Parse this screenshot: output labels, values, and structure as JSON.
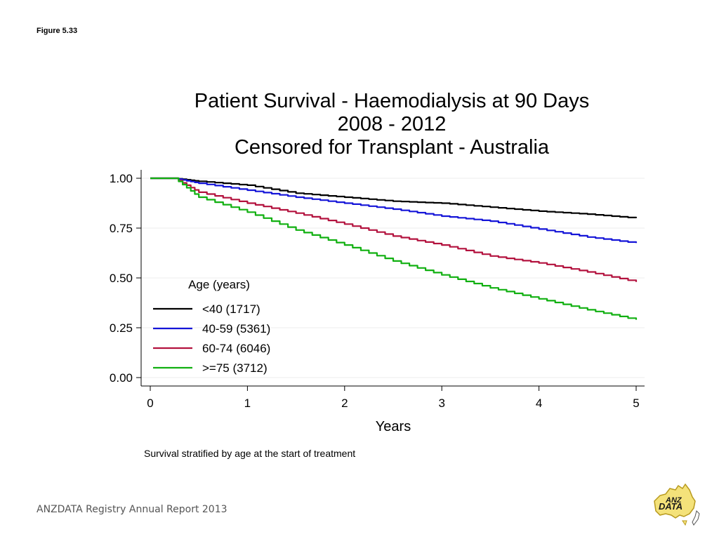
{
  "figure_label": "Figure 5.33",
  "caption": "Survival stratified by age at the start of treatment",
  "footer": "ANZDATA Registry Annual Report 2013",
  "logo": {
    "text_top": "ANZ",
    "text_bottom": "DATA",
    "icon": "australia-map-logo-icon"
  },
  "chart_data": {
    "type": "line",
    "title": [
      "Patient Survival - Haemodialysis at 90 Days",
      "2008 - 2012",
      "Censored for Transplant - Australia"
    ],
    "xlabel": "Years",
    "ylabel": "",
    "xlim": [
      0,
      5
    ],
    "ylim": [
      0,
      1
    ],
    "xticks": [
      "0",
      "1",
      "2",
      "3",
      "4",
      "5"
    ],
    "yticks": [
      "0.00",
      "0.25",
      "0.50",
      "0.75",
      "1.00"
    ],
    "grid": true,
    "legend": {
      "title": "Age (years)",
      "placement": "inside-bottom-left"
    },
    "x": [
      0,
      0.25,
      0.5,
      1,
      1.5,
      2,
      2.5,
      3,
      3.5,
      4,
      4.5,
      5
    ],
    "series": [
      {
        "name": "<40 (1717)",
        "color": "#000000",
        "values": [
          1.0,
          1.0,
          0.985,
          0.965,
          0.925,
          0.905,
          0.885,
          0.875,
          0.855,
          0.835,
          0.82,
          0.8
        ]
      },
      {
        "name": "40-59 (5361)",
        "color": "#1515d8",
        "values": [
          1.0,
          1.0,
          0.975,
          0.94,
          0.905,
          0.875,
          0.845,
          0.81,
          0.785,
          0.745,
          0.705,
          0.675
        ]
      },
      {
        "name": "60-74 (6046)",
        "color": "#b3123e",
        "values": [
          1.0,
          1.0,
          0.93,
          0.875,
          0.825,
          0.77,
          0.71,
          0.665,
          0.61,
          0.575,
          0.53,
          0.48
        ]
      },
      {
        "name": ">=75 (3712)",
        "color": "#11b011",
        "values": [
          1.0,
          1.0,
          0.905,
          0.83,
          0.74,
          0.665,
          0.585,
          0.515,
          0.45,
          0.395,
          0.34,
          0.29
        ]
      }
    ]
  }
}
